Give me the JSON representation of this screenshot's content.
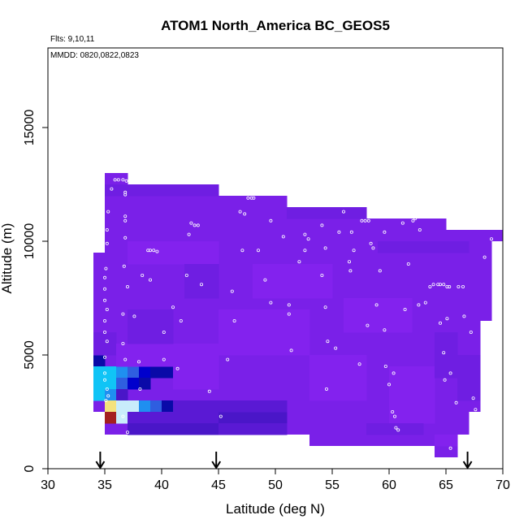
{
  "chart_data": {
    "type": "heatmap",
    "title": "ATOM1 North_America BC_GEOS5",
    "notes": [
      "Flts: 9,10,11",
      "MMDD: 0820,0822,0823"
    ],
    "xlabel": "Latitude (deg N)",
    "ylabel": "Altitude (m)",
    "xlim": [
      30,
      70
    ],
    "ylim": [
      0,
      18500
    ],
    "xticks": [
      30,
      35,
      40,
      45,
      50,
      55,
      60,
      65,
      70
    ],
    "yticks": [
      0,
      5000,
      10000,
      15000
    ],
    "grid": false,
    "cell_size": {
      "lat": 1,
      "alt": 500
    },
    "colors": {
      "default": "#7a20e8",
      "light_violet": "#8322ee",
      "violet": "#6f1ee2",
      "deep_violet": "#5a19d4",
      "indigo": "#4a16c8",
      "dark_blue": "#0a0aa8",
      "blue": "#0000cc",
      "royal_blue": "#2f5ee0",
      "sky_blue": "#1f8ff0",
      "cyan": "#10c4f6",
      "light_cyan": "#c8ecfb",
      "yellow": "#f4e27c",
      "dark_red": "#a42020"
    },
    "columns": [
      {
        "lat": [
          34,
          35
        ],
        "alt": [
          2500,
          9500
        ]
      },
      {
        "lat": [
          35,
          37
        ],
        "alt": [
          1500,
          13000
        ]
      },
      {
        "lat": [
          37,
          45
        ],
        "alt": [
          1500,
          12500
        ]
      },
      {
        "lat": [
          45,
          51
        ],
        "alt": [
          1500,
          12000
        ]
      },
      {
        "lat": [
          51,
          53
        ],
        "alt": [
          1500,
          11500
        ]
      },
      {
        "lat": [
          53,
          61
        ],
        "alt": [
          1000,
          11000
        ]
      },
      {
        "lat": [
          61,
          64
        ],
        "alt": [
          1000,
          11000
        ]
      },
      {
        "lat": [
          64,
          65
        ],
        "alt": [
          500,
          11000
        ]
      },
      {
        "lat": [
          65,
          66
        ],
        "alt": [
          500,
          10500
        ]
      },
      {
        "lat": [
          66,
          67
        ],
        "alt": [
          1500,
          10500
        ]
      },
      {
        "lat": [
          67,
          68
        ],
        "alt": [
          2500,
          10500
        ]
      },
      {
        "lat": [
          68,
          69
        ],
        "alt": [
          6500,
          10500
        ]
      },
      {
        "lat": [
          69,
          70
        ],
        "alt": [
          10000,
          10500
        ]
      }
    ],
    "patches": [
      {
        "lat": [
          34,
          35
        ],
        "alt": [
          4500,
          5000
        ],
        "color": "dark_blue"
      },
      {
        "lat": [
          34,
          35
        ],
        "alt": [
          4000,
          4500
        ],
        "color": "cyan"
      },
      {
        "lat": [
          35,
          36
        ],
        "alt": [
          4000,
          4500
        ],
        "color": "cyan"
      },
      {
        "lat": [
          36,
          37
        ],
        "alt": [
          4000,
          4500
        ],
        "color": "sky_blue"
      },
      {
        "lat": [
          37,
          38
        ],
        "alt": [
          4000,
          4500
        ],
        "color": "royal_blue"
      },
      {
        "lat": [
          38,
          39
        ],
        "alt": [
          4000,
          4500
        ],
        "color": "blue"
      },
      {
        "lat": [
          39,
          40
        ],
        "alt": [
          4000,
          4500
        ],
        "color": "dark_blue"
      },
      {
        "lat": [
          40,
          41
        ],
        "alt": [
          4000,
          4500
        ],
        "color": "dark_blue"
      },
      {
        "lat": [
          34,
          35
        ],
        "alt": [
          3000,
          4000
        ],
        "color": "cyan"
      },
      {
        "lat": [
          35,
          36
        ],
        "alt": [
          3500,
          4000
        ],
        "color": "cyan"
      },
      {
        "lat": [
          36,
          37
        ],
        "alt": [
          3500,
          4000
        ],
        "color": "royal_blue"
      },
      {
        "lat": [
          37,
          38
        ],
        "alt": [
          3500,
          4000
        ],
        "color": "blue"
      },
      {
        "lat": [
          38,
          39
        ],
        "alt": [
          3500,
          4000
        ],
        "color": "dark_blue"
      },
      {
        "lat": [
          35,
          36
        ],
        "alt": [
          3000,
          3500
        ],
        "color": "sky_blue"
      },
      {
        "lat": [
          36,
          37
        ],
        "alt": [
          3000,
          3500
        ],
        "color": "indigo"
      },
      {
        "lat": [
          35,
          36
        ],
        "alt": [
          2500,
          3000
        ],
        "color": "yellow"
      },
      {
        "lat": [
          36,
          37
        ],
        "alt": [
          2500,
          3000
        ],
        "color": "light_cyan"
      },
      {
        "lat": [
          37,
          38
        ],
        "alt": [
          2500,
          3000
        ],
        "color": "light_cyan"
      },
      {
        "lat": [
          38,
          39
        ],
        "alt": [
          2500,
          3000
        ],
        "color": "sky_blue"
      },
      {
        "lat": [
          39,
          40
        ],
        "alt": [
          2500,
          3000
        ],
        "color": "royal_blue"
      },
      {
        "lat": [
          40,
          41
        ],
        "alt": [
          2500,
          3000
        ],
        "color": "dark_blue"
      },
      {
        "lat": [
          35,
          36
        ],
        "alt": [
          2000,
          2500
        ],
        "color": "dark_red"
      },
      {
        "lat": [
          36,
          37
        ],
        "alt": [
          2000,
          2500
        ],
        "color": "light_cyan"
      },
      {
        "lat": [
          37,
          45
        ],
        "alt": [
          2000,
          2500
        ],
        "color": "deep_violet"
      },
      {
        "lat": [
          45,
          51
        ],
        "alt": [
          2000,
          2500
        ],
        "color": "indigo"
      },
      {
        "lat": [
          37,
          45
        ],
        "alt": [
          1500,
          2000
        ],
        "color": "indigo"
      },
      {
        "lat": [
          45,
          51
        ],
        "alt": [
          1500,
          2000
        ],
        "color": "deep_violet"
      },
      {
        "lat": [
          41,
          51
        ],
        "alt": [
          2500,
          3000
        ],
        "color": "deep_violet"
      },
      {
        "lat": [
          34,
          36
        ],
        "alt": [
          5000,
          6000
        ],
        "color": "violet"
      },
      {
        "lat": [
          36,
          45
        ],
        "alt": [
          4500,
          5500
        ],
        "color": "light_violet"
      },
      {
        "lat": [
          41,
          45
        ],
        "alt": [
          3500,
          4500
        ],
        "color": "light_violet"
      },
      {
        "lat": [
          45,
          53
        ],
        "alt": [
          5000,
          7000
        ],
        "color": "light_violet"
      },
      {
        "lat": [
          53,
          58
        ],
        "alt": [
          3000,
          5000
        ],
        "color": "light_violet"
      },
      {
        "lat": [
          35,
          45
        ],
        "alt": [
          12000,
          12500
        ],
        "color": "violet"
      },
      {
        "lat": [
          51,
          58
        ],
        "alt": [
          11000,
          11500
        ],
        "color": "violet"
      },
      {
        "lat": [
          59,
          67
        ],
        "alt": [
          9500,
          10000
        ],
        "color": "violet"
      },
      {
        "lat": [
          37,
          45
        ],
        "alt": [
          9000,
          10000
        ],
        "color": "light_violet"
      },
      {
        "lat": [
          48,
          55
        ],
        "alt": [
          7500,
          9000
        ],
        "color": "light_violet"
      },
      {
        "lat": [
          56,
          62
        ],
        "alt": [
          6000,
          7500
        ],
        "color": "light_violet"
      },
      {
        "lat": [
          60,
          64
        ],
        "alt": [
          2000,
          4500
        ],
        "color": "light_violet"
      },
      {
        "lat": [
          64,
          66
        ],
        "alt": [
          4000,
          6000
        ],
        "color": "violet"
      },
      {
        "lat": [
          66,
          68
        ],
        "alt": [
          3000,
          5000
        ],
        "color": "violet"
      },
      {
        "lat": [
          37,
          41
        ],
        "alt": [
          5500,
          7000
        ],
        "color": "violet"
      },
      {
        "lat": [
          42,
          45
        ],
        "alt": [
          7500,
          9000
        ],
        "color": "violet"
      },
      {
        "lat": [
          58,
          63
        ],
        "alt": [
          1500,
          2000
        ],
        "color": "violet"
      },
      {
        "lat": [
          64,
          66
        ],
        "alt": [
          1000,
          1500
        ],
        "color": "light_violet"
      }
    ],
    "points": [
      [
        35.6,
        12300
      ],
      [
        35.9,
        12700
      ],
      [
        36.2,
        12700
      ],
      [
        36.6,
        12700
      ],
      [
        36.9,
        12650
      ],
      [
        36.8,
        12150
      ],
      [
        36.8,
        12050
      ],
      [
        35.3,
        11300
      ],
      [
        36.8,
        11100
      ],
      [
        36.8,
        10900
      ],
      [
        35.2,
        10500
      ],
      [
        36.8,
        10150
      ],
      [
        35.2,
        9900
      ],
      [
        35.1,
        8800
      ],
      [
        35.0,
        8400
      ],
      [
        36.7,
        8900
      ],
      [
        37.0,
        8000
      ],
      [
        35.0,
        7900
      ],
      [
        35.0,
        7400
      ],
      [
        35.2,
        7000
      ],
      [
        36.6,
        6800
      ],
      [
        37.6,
        6700
      ],
      [
        35.0,
        6500
      ],
      [
        35.0,
        6000
      ],
      [
        35.2,
        5600
      ],
      [
        36.6,
        5500
      ],
      [
        35.0,
        4900
      ],
      [
        36.8,
        4800
      ],
      [
        38.0,
        4700
      ],
      [
        40.2,
        4800
      ],
      [
        41.4,
        4400
      ],
      [
        35.0,
        4200
      ],
      [
        35.0,
        3900
      ],
      [
        35.2,
        3500
      ],
      [
        35.3,
        3200
      ],
      [
        35.1,
        3000
      ],
      [
        36.6,
        2300
      ],
      [
        37.0,
        1600
      ],
      [
        38.1,
        3500
      ],
      [
        38.8,
        9600
      ],
      [
        39.0,
        9600
      ],
      [
        39.3,
        9600
      ],
      [
        39.6,
        9550
      ],
      [
        38.3,
        8500
      ],
      [
        39.0,
        8300
      ],
      [
        41.0,
        7100
      ],
      [
        40.2,
        6000
      ],
      [
        41.7,
        6500
      ],
      [
        42.2,
        8500
      ],
      [
        43.5,
        8100
      ],
      [
        42.6,
        10800
      ],
      [
        42.9,
        10700
      ],
      [
        43.2,
        10700
      ],
      [
        42.4,
        10300
      ],
      [
        44.2,
        3400
      ],
      [
        45.2,
        2300
      ],
      [
        45.8,
        4800
      ],
      [
        46.2,
        7800
      ],
      [
        46.4,
        6500
      ],
      [
        46.9,
        11300
      ],
      [
        47.1,
        9600
      ],
      [
        47.3,
        11200
      ],
      [
        47.6,
        11900
      ],
      [
        47.9,
        11900
      ],
      [
        48.1,
        11900
      ],
      [
        48.5,
        9600
      ],
      [
        49.1,
        8300
      ],
      [
        49.6,
        10900
      ],
      [
        49.6,
        7300
      ],
      [
        51.2,
        7200
      ],
      [
        50.7,
        10200
      ],
      [
        51.2,
        6800
      ],
      [
        51.4,
        5200
      ],
      [
        52.1,
        9100
      ],
      [
        51.8,
        11600
      ],
      [
        52.1,
        11600
      ],
      [
        52.6,
        10300
      ],
      [
        52.6,
        9600
      ],
      [
        52.9,
        10100
      ],
      [
        54.1,
        10700
      ],
      [
        54.1,
        8500
      ],
      [
        54.4,
        9700
      ],
      [
        54.4,
        7100
      ],
      [
        54.6,
        5600
      ],
      [
        54.5,
        3500
      ],
      [
        55.3,
        5300
      ],
      [
        55.6,
        10400
      ],
      [
        56.0,
        11300
      ],
      [
        56.5,
        9100
      ],
      [
        56.6,
        8700
      ],
      [
        56.7,
        10400
      ],
      [
        56.9,
        9600
      ],
      [
        57.4,
        4600
      ],
      [
        57.6,
        10900
      ],
      [
        57.9,
        10900
      ],
      [
        58.2,
        10900
      ],
      [
        58.1,
        6300
      ],
      [
        58.4,
        9900
      ],
      [
        58.6,
        9700
      ],
      [
        58.9,
        7200
      ],
      [
        59.2,
        8700
      ],
      [
        59.6,
        10400
      ],
      [
        59.6,
        6100
      ],
      [
        59.7,
        4500
      ],
      [
        60.0,
        3700
      ],
      [
        60.4,
        4200
      ],
      [
        60.3,
        2500
      ],
      [
        60.5,
        2300
      ],
      [
        60.6,
        1800
      ],
      [
        60.8,
        1700
      ],
      [
        61.2,
        10800
      ],
      [
        61.4,
        7000
      ],
      [
        61.7,
        9000
      ],
      [
        62.1,
        10900
      ],
      [
        62.3,
        11000
      ],
      [
        62.7,
        10500
      ],
      [
        62.6,
        7200
      ],
      [
        63.2,
        7300
      ],
      [
        63.6,
        8000
      ],
      [
        63.9,
        8100
      ],
      [
        64.3,
        8100
      ],
      [
        64.5,
        8100
      ],
      [
        64.8,
        8100
      ],
      [
        65.1,
        8000
      ],
      [
        65.3,
        8000
      ],
      [
        64.5,
        6400
      ],
      [
        64.8,
        5100
      ],
      [
        64.9,
        3900
      ],
      [
        65.1,
        6600
      ],
      [
        65.4,
        4200
      ],
      [
        65.9,
        2900
      ],
      [
        66.1,
        8000
      ],
      [
        66.5,
        8000
      ],
      [
        66.6,
        6700
      ],
      [
        67.2,
        6000
      ],
      [
        67.4,
        3100
      ],
      [
        67.6,
        2600
      ],
      [
        68.0,
        10600
      ],
      [
        68.7,
        10600
      ],
      [
        69.0,
        10100
      ],
      [
        68.4,
        9300
      ],
      [
        65.4,
        900
      ]
    ],
    "arrows": [
      34.6,
      44.8,
      66.9
    ]
  }
}
